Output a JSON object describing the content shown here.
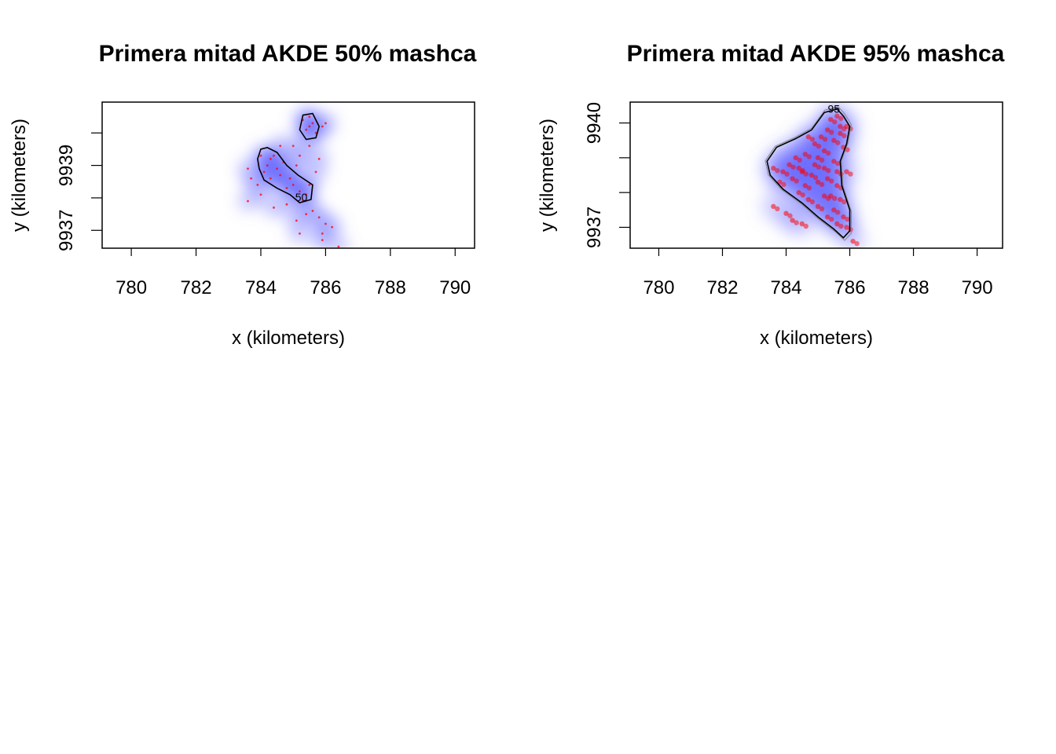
{
  "chart_data": [
    {
      "type": "scatter",
      "title": "Primera mitad AKDE 50% mashca",
      "xlabel": "x (kilometers)",
      "ylabel": "y (kilometers)",
      "xlim": [
        779.1,
        790.6
      ],
      "ylim": [
        9936.45,
        9940.95
      ],
      "xticks": [
        "780",
        "782",
        "784",
        "786",
        "788",
        "790"
      ],
      "yticks": [
        "9937",
        "9939"
      ],
      "contour_level_labels": [
        "50"
      ],
      "contours": [
        {
          "level": 50,
          "polygon": [
            [
              784.0,
              9939.5
            ],
            [
              784.2,
              9939.55
            ],
            [
              784.5,
              9939.4
            ],
            [
              784.8,
              9939.0
            ],
            [
              785.15,
              9938.7
            ],
            [
              785.6,
              9938.4
            ],
            [
              785.55,
              9937.95
            ],
            [
              785.2,
              9937.85
            ],
            [
              784.9,
              9938.1
            ],
            [
              784.5,
              9938.3
            ],
            [
              784.1,
              9938.55
            ],
            [
              783.95,
              9938.9
            ],
            [
              783.9,
              9939.2
            ]
          ]
        },
        {
          "level": 50,
          "polygon": [
            [
              785.3,
              9940.55
            ],
            [
              785.6,
              9940.6
            ],
            [
              785.8,
              9940.2
            ],
            [
              785.7,
              9939.85
            ],
            [
              785.4,
              9939.8
            ],
            [
              785.2,
              9940.1
            ]
          ]
        }
      ],
      "points": [
        [
          785.5,
          9940.2
        ],
        [
          785.4,
          9940.1
        ],
        [
          785.6,
          9940.3
        ],
        [
          785.3,
          9940.4
        ],
        [
          785.5,
          9940.5
        ],
        [
          785.7,
          9940.0
        ],
        [
          785.9,
          9940.2
        ],
        [
          786.0,
          9940.3
        ],
        [
          784.3,
          9939.2
        ],
        [
          784.2,
          9939.0
        ],
        [
          784.5,
          9938.9
        ],
        [
          784.4,
          9939.3
        ],
        [
          784.6,
          9938.7
        ],
        [
          784.1,
          9938.8
        ],
        [
          784.7,
          9939.1
        ],
        [
          784.3,
          9938.6
        ],
        [
          784.9,
          9938.6
        ],
        [
          785.0,
          9938.4
        ],
        [
          785.2,
          9938.2
        ],
        [
          785.4,
          9938.1
        ],
        [
          785.3,
          9937.9
        ],
        [
          785.6,
          9937.6
        ],
        [
          785.8,
          9937.4
        ],
        [
          785.4,
          9937.5
        ],
        [
          783.6,
          9938.9
        ],
        [
          783.7,
          9938.6
        ],
        [
          783.9,
          9938.4
        ],
        [
          784.0,
          9938.1
        ],
        [
          783.6,
          9937.9
        ],
        [
          784.4,
          9937.7
        ],
        [
          784.8,
          9937.8
        ],
        [
          785.1,
          9937.3
        ],
        [
          785.9,
          9936.9
        ],
        [
          786.0,
          9937.2
        ],
        [
          785.0,
          9939.6
        ],
        [
          785.2,
          9939.3
        ],
        [
          785.5,
          9939.6
        ],
        [
          785.8,
          9939.2
        ],
        [
          785.1,
          9939.0
        ],
        [
          785.7,
          9938.8
        ],
        [
          784.6,
          9939.6
        ],
        [
          784.0,
          9939.3
        ],
        [
          784.8,
          9938.3
        ],
        [
          785.5,
          9938.4
        ],
        [
          786.2,
          9937.1
        ],
        [
          785.2,
          9936.9
        ],
        [
          785.9,
          9936.7
        ],
        [
          786.4,
          9936.5
        ]
      ]
    },
    {
      "type": "scatter",
      "title": "Primera mitad AKDE 95% mashca",
      "xlabel": "x (kilometers)",
      "ylabel": "y (kilometers)",
      "xlim": [
        779.1,
        790.8
      ],
      "ylim": [
        9936.4,
        9940.6
      ],
      "xticks": [
        "780",
        "782",
        "784",
        "786",
        "788",
        "790"
      ],
      "yticks": [
        "9937",
        "9940"
      ],
      "contour_level_labels": [
        "95"
      ],
      "contours": [
        {
          "level": 95,
          "polygon": [
            [
              785.2,
              9940.3
            ],
            [
              785.6,
              9940.4
            ],
            [
              785.8,
              9940.2
            ],
            [
              786.0,
              9939.9
            ],
            [
              785.9,
              9939.4
            ],
            [
              785.7,
              9938.9
            ],
            [
              785.75,
              9938.2
            ],
            [
              786.0,
              9937.5
            ],
            [
              786.0,
              9936.9
            ],
            [
              785.8,
              9936.7
            ],
            [
              785.5,
              9936.95
            ],
            [
              785.0,
              9937.3
            ],
            [
              784.5,
              9937.7
            ],
            [
              783.9,
              9938.1
            ],
            [
              783.5,
              9938.5
            ],
            [
              783.4,
              9938.9
            ],
            [
              783.7,
              9939.3
            ],
            [
              784.3,
              9939.55
            ],
            [
              784.8,
              9939.8
            ]
          ]
        }
      ],
      "points": [
        [
          785.4,
          9940.1
        ],
        [
          785.6,
          9940.2
        ],
        [
          785.7,
          9939.9
        ],
        [
          785.3,
          9939.8
        ],
        [
          785.5,
          9939.5
        ],
        [
          785.8,
          9939.3
        ],
        [
          785.2,
          9939.2
        ],
        [
          784.9,
          9939.4
        ],
        [
          784.6,
          9939.1
        ],
        [
          784.3,
          9939.0
        ],
        [
          784.1,
          9938.8
        ],
        [
          783.9,
          9938.6
        ],
        [
          783.6,
          9938.7
        ],
        [
          783.8,
          9938.3
        ],
        [
          784.2,
          9938.4
        ],
        [
          784.5,
          9938.6
        ],
        [
          784.8,
          9938.5
        ],
        [
          785.0,
          9938.3
        ],
        [
          785.3,
          9938.4
        ],
        [
          785.6,
          9938.2
        ],
        [
          785.4,
          9937.9
        ],
        [
          785.7,
          9937.8
        ],
        [
          785.5,
          9937.5
        ],
        [
          785.8,
          9937.3
        ],
        [
          785.6,
          9937.1
        ],
        [
          785.9,
          9937.0
        ],
        [
          785.3,
          9937.3
        ],
        [
          785.0,
          9937.6
        ],
        [
          784.7,
          9937.8
        ],
        [
          784.4,
          9938.0
        ],
        [
          784.9,
          9938.8
        ],
        [
          785.2,
          9938.7
        ],
        [
          785.5,
          9938.9
        ],
        [
          784.0,
          9937.4
        ],
        [
          784.2,
          9937.2
        ],
        [
          784.5,
          9937.1
        ],
        [
          786.1,
          9936.6
        ],
        [
          783.6,
          9937.6
        ],
        [
          785.9,
          9938.6
        ],
        [
          785.1,
          9939.6
        ],
        [
          784.7,
          9939.6
        ],
        [
          785.0,
          9939.0
        ],
        [
          784.4,
          9938.7
        ],
        [
          785.6,
          9938.6
        ],
        [
          785.2,
          9937.9
        ],
        [
          784.6,
          9938.2
        ],
        [
          785.7,
          9939.7
        ],
        [
          785.9,
          9939.9
        ]
      ]
    }
  ]
}
